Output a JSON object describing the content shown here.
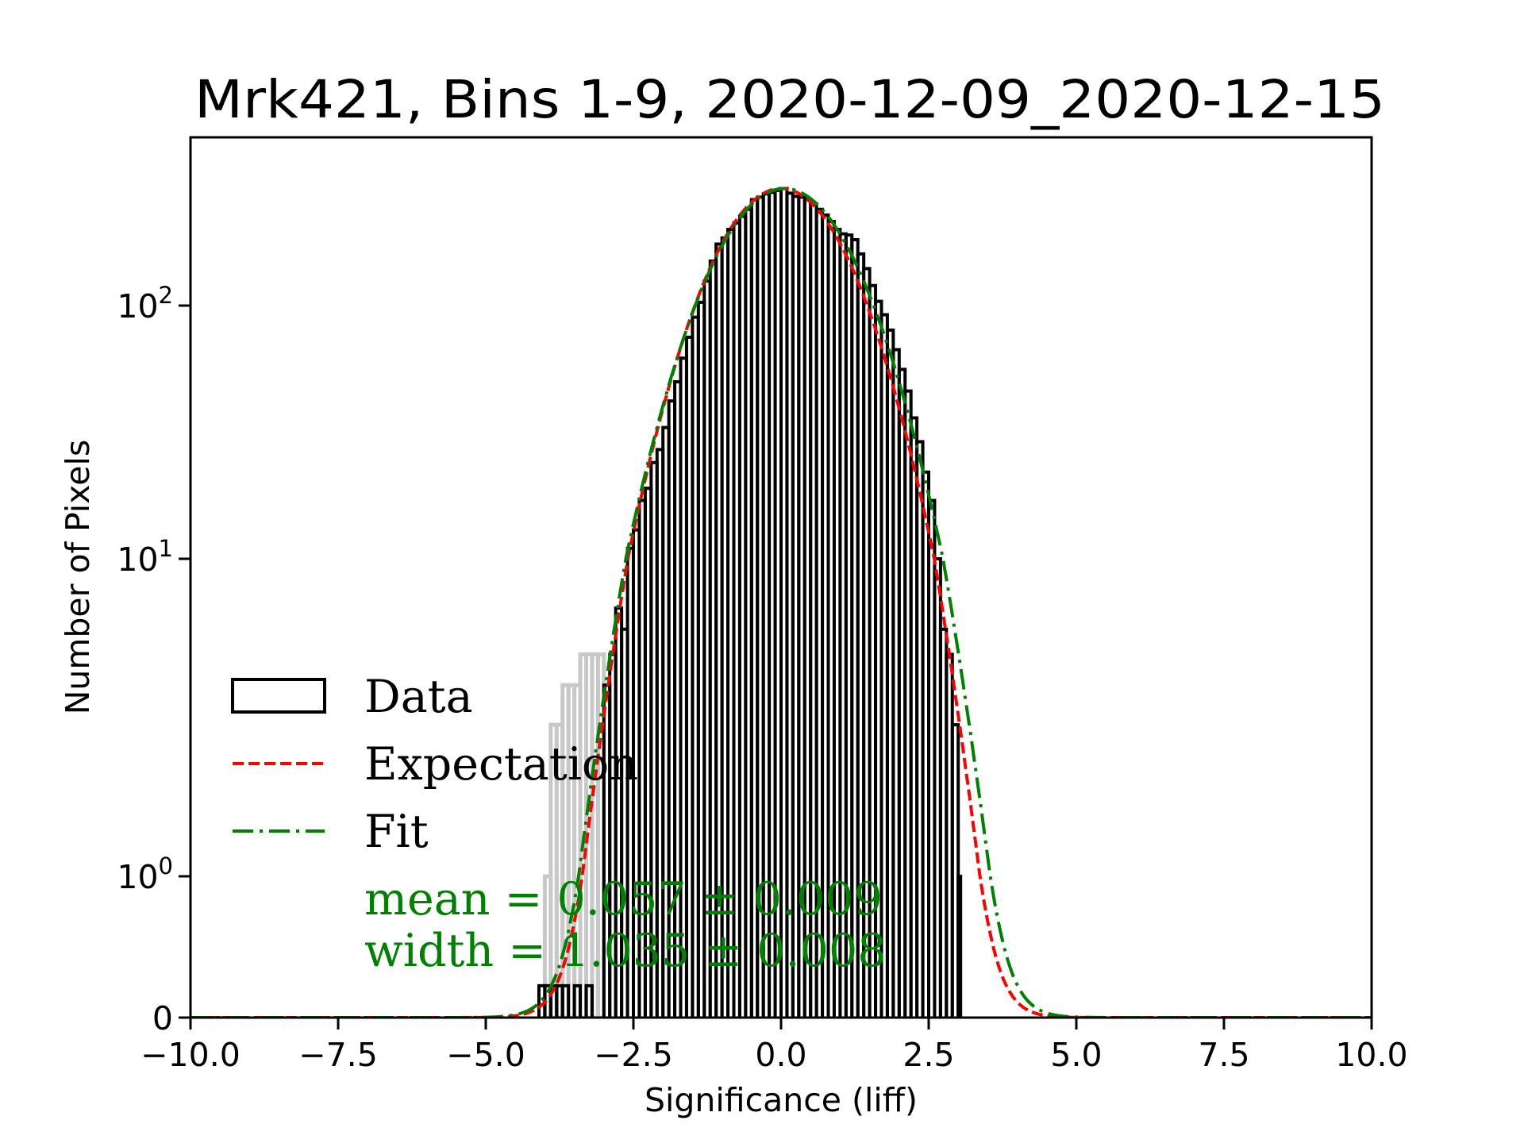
{
  "chart_data": {
    "type": "bar",
    "subtype": "step-histogram-with-curves",
    "title": "Mrk421, Bins 1-9, 2020-12-09_2020-12-15",
    "xlabel": "Significance (liff)",
    "ylabel": "Number of Pixels",
    "xlim": [
      -10.0,
      10.0
    ],
    "x_ticks": [
      -10.0,
      -7.5,
      -5.0,
      -2.5,
      0.0,
      2.5,
      5.0,
      7.5,
      10.0
    ],
    "x_tick_labels": [
      "−10.0",
      "−7.5",
      "−5.0",
      "−2.5",
      "0.0",
      "2.5",
      "5.0",
      "7.5",
      "10.0"
    ],
    "yscale": "symlog",
    "y_ticks": [
      0,
      1,
      10,
      100
    ],
    "y_tick_labels": [
      {
        "base": "0",
        "exp": ""
      },
      {
        "base": "10",
        "exp": "0"
      },
      {
        "base": "10",
        "exp": "1"
      },
      {
        "base": "10",
        "exp": "2"
      }
    ],
    "grid": false,
    "legend_position": "lower-left",
    "legend": [
      {
        "label": "Data",
        "style": "box",
        "color": "#000000"
      },
      {
        "label": "Expectation",
        "style": "dashed",
        "color": "#ff0000"
      },
      {
        "label": "Fit",
        "style": "dash-dot",
        "color": "#008000"
      }
    ],
    "annotations": [
      {
        "text": "mean = 0.057 ± 0.009",
        "color": "#008000"
      },
      {
        "text": "width = 1.035 ± 0.008",
        "color": "#008000"
      }
    ],
    "histogram": {
      "name": "Data",
      "color": "#000000",
      "bin_width": 0.1,
      "bin_left_edges": [
        -4.1,
        -4.0,
        -3.9,
        -3.8,
        -3.7,
        -3.6,
        -3.5,
        -3.4,
        -3.3,
        -3.2,
        -3.1,
        -3.0,
        -2.9,
        -2.8,
        -2.7,
        -2.6,
        -2.5,
        -2.4,
        -2.3,
        -2.2,
        -2.1,
        -2.0,
        -1.9,
        -1.8,
        -1.7,
        -1.6,
        -1.5,
        -1.4,
        -1.3,
        -1.2,
        -1.1,
        -1.0,
        -0.9,
        -0.8,
        -0.7,
        -0.6,
        -0.5,
        -0.4,
        -0.3,
        -0.2,
        -0.1,
        0.0,
        0.1,
        0.2,
        0.3,
        0.4,
        0.5,
        0.6,
        0.7,
        0.8,
        0.9,
        1.0,
        1.1,
        1.2,
        1.3,
        1.4,
        1.5,
        1.6,
        1.7,
        1.8,
        1.9,
        2.0,
        2.1,
        2.2,
        2.3,
        2.4,
        2.5,
        2.6,
        2.7,
        2.8,
        2.9,
        3.0
      ],
      "counts": [
        0.2,
        0.2,
        0.2,
        0.2,
        0.2,
        0,
        0.2,
        0,
        0.2,
        0,
        0,
        4,
        5,
        7,
        6,
        11,
        13,
        17,
        19,
        24,
        27,
        33,
        42,
        50,
        62,
        75,
        90,
        103,
        125,
        150,
        175,
        185,
        200,
        212,
        225,
        240,
        262,
        268,
        276,
        280,
        285,
        290,
        278,
        270,
        268,
        262,
        252,
        240,
        228,
        215,
        200,
        192,
        190,
        182,
        160,
        140,
        120,
        104,
        92,
        80,
        67,
        56,
        46,
        36,
        29,
        22,
        17,
        10,
        6,
        5,
        3,
        1
      ]
    },
    "band": {
      "name": "low-count uncertainty band",
      "color": "#c8c8c8",
      "bin_width": 0.1,
      "bin_left_edges": [
        -4.0,
        -3.9,
        -3.8,
        -3.7,
        -3.6,
        -3.5,
        -3.4,
        -3.3,
        -3.2,
        -3.1
      ],
      "upper": [
        1,
        3,
        3,
        4,
        4,
        4,
        5,
        5,
        5,
        5
      ]
    },
    "series": [
      {
        "name": "Expectation",
        "kind": "gaussian",
        "amplitude": 290,
        "mean": 0.0,
        "sigma": 1.0,
        "color": "#ff0000",
        "style": "dashed"
      },
      {
        "name": "Fit",
        "kind": "gaussian",
        "amplitude": 290,
        "mean": 0.057,
        "sigma": 1.035,
        "color": "#008000",
        "style": "dash-dot"
      }
    ]
  }
}
